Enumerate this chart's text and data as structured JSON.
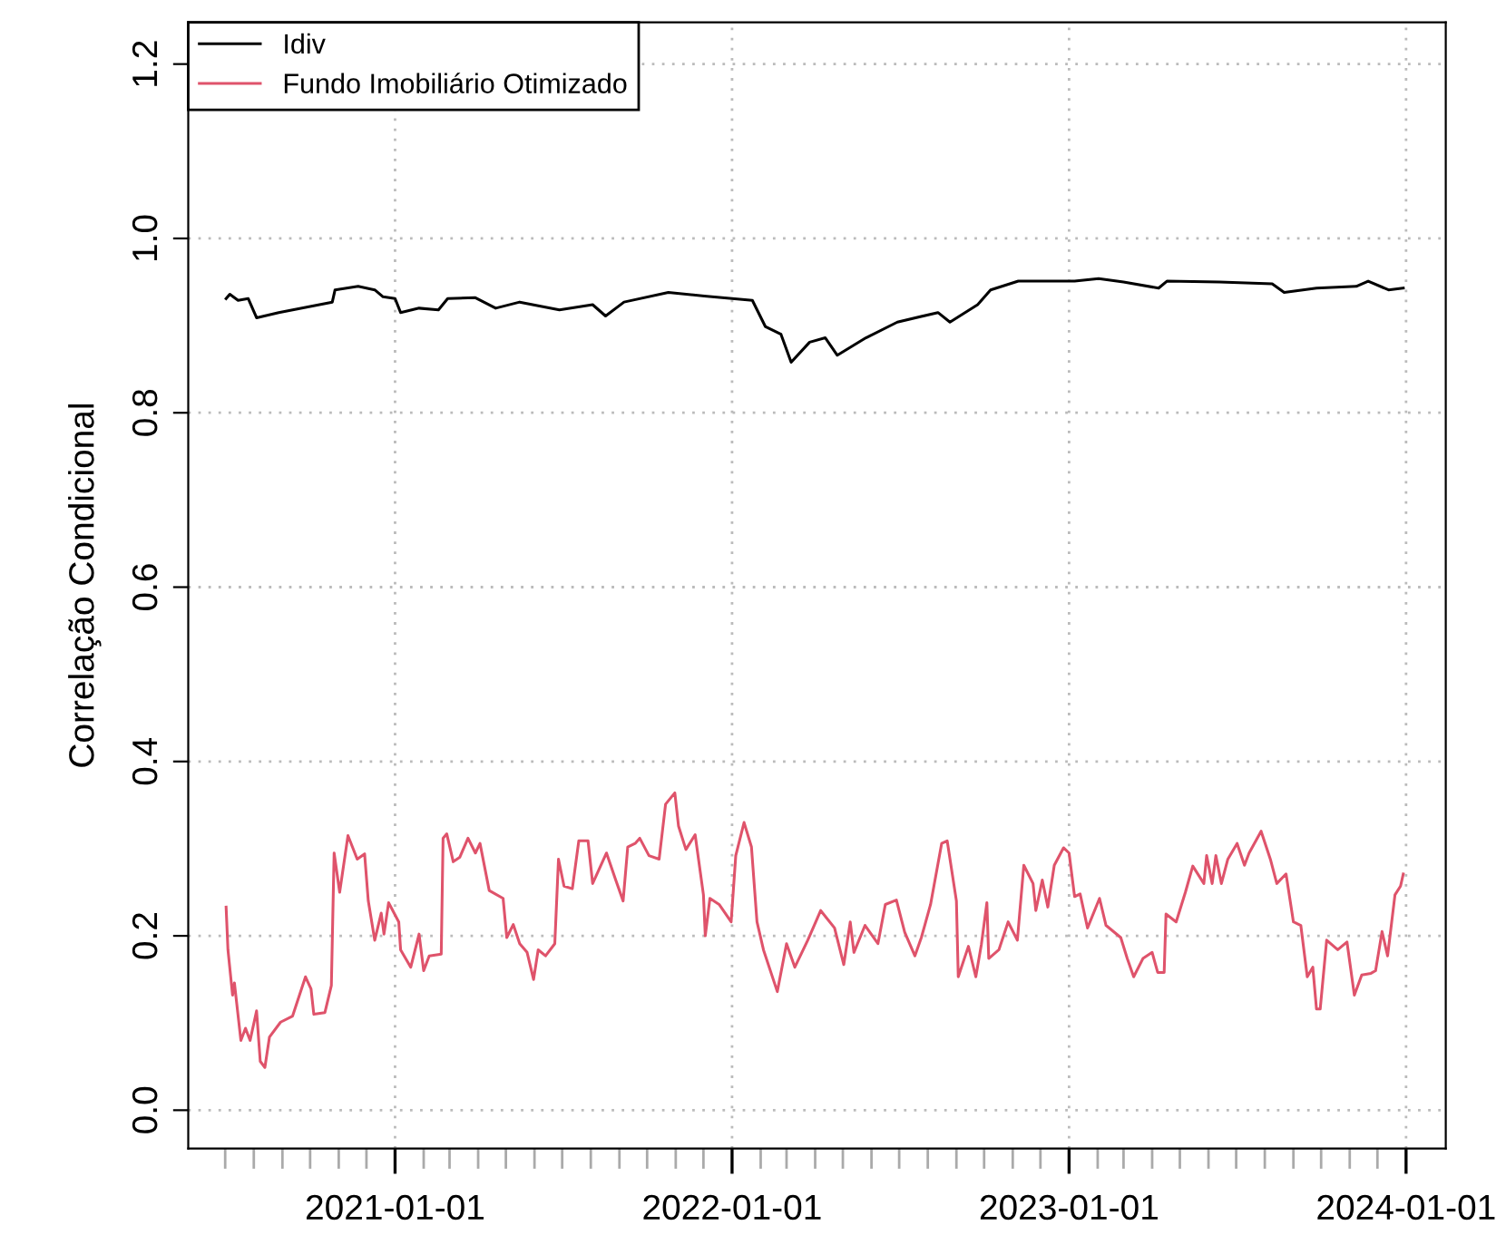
{
  "chart_data": {
    "type": "line",
    "ylabel": "Correlação Condicional",
    "xlim": [
      "2020-05-22",
      "2024-02-13"
    ],
    "ylim": [
      -0.044,
      1.248
    ],
    "yticks": [
      {
        "value": 0.0,
        "label": "0.0"
      },
      {
        "value": 0.2,
        "label": "0.2"
      },
      {
        "value": 0.4,
        "label": "0.4"
      },
      {
        "value": 0.6,
        "label": "0.6"
      },
      {
        "value": 0.8,
        "label": "0.8"
      },
      {
        "value": 1.0,
        "label": "1.0"
      },
      {
        "value": 1.2,
        "label": "1.2"
      }
    ],
    "xticks": [
      {
        "value": "2020-07-01",
        "label": null
      },
      {
        "value": "2020-08-01",
        "label": null
      },
      {
        "value": "2020-09-01",
        "label": null
      },
      {
        "value": "2020-10-01",
        "label": null
      },
      {
        "value": "2020-11-01",
        "label": null
      },
      {
        "value": "2020-12-01",
        "label": null
      },
      {
        "value": "2021-01-01",
        "label": "2021-01-01"
      },
      {
        "value": "2021-02-01",
        "label": null
      },
      {
        "value": "2021-03-01",
        "label": null
      },
      {
        "value": "2021-04-01",
        "label": null
      },
      {
        "value": "2021-05-01",
        "label": null
      },
      {
        "value": "2021-06-01",
        "label": null
      },
      {
        "value": "2021-07-01",
        "label": null
      },
      {
        "value": "2021-08-01",
        "label": null
      },
      {
        "value": "2021-09-01",
        "label": null
      },
      {
        "value": "2021-10-01",
        "label": null
      },
      {
        "value": "2021-11-01",
        "label": null
      },
      {
        "value": "2021-12-01",
        "label": null
      },
      {
        "value": "2022-01-01",
        "label": "2022-01-01"
      },
      {
        "value": "2022-02-01",
        "label": null
      },
      {
        "value": "2022-03-01",
        "label": null
      },
      {
        "value": "2022-04-01",
        "label": null
      },
      {
        "value": "2022-05-01",
        "label": null
      },
      {
        "value": "2022-06-01",
        "label": null
      },
      {
        "value": "2022-07-01",
        "label": null
      },
      {
        "value": "2022-08-01",
        "label": null
      },
      {
        "value": "2022-09-01",
        "label": null
      },
      {
        "value": "2022-10-01",
        "label": null
      },
      {
        "value": "2022-11-01",
        "label": null
      },
      {
        "value": "2022-12-01",
        "label": null
      },
      {
        "value": "2023-01-01",
        "label": "2023-01-01"
      },
      {
        "value": "2023-02-01",
        "label": null
      },
      {
        "value": "2023-03-01",
        "label": null
      },
      {
        "value": "2023-04-01",
        "label": null
      },
      {
        "value": "2023-05-01",
        "label": null
      },
      {
        "value": "2023-06-01",
        "label": null
      },
      {
        "value": "2023-07-01",
        "label": null
      },
      {
        "value": "2023-08-01",
        "label": null
      },
      {
        "value": "2023-09-01",
        "label": null
      },
      {
        "value": "2023-10-01",
        "label": null
      },
      {
        "value": "2023-11-01",
        "label": null
      },
      {
        "value": "2023-12-01",
        "label": null
      },
      {
        "value": "2024-01-01",
        "label": "2024-01-01"
      }
    ],
    "grid": true,
    "legend": "top left",
    "line_style": "solid",
    "series": [
      {
        "name": "Idiv",
        "color": "#000000",
        "x": [
          "2020-07-02",
          "2020-07-06",
          "2020-07-15",
          "2020-07-26",
          "2020-08-04",
          "2020-08-28",
          "2020-10-01",
          "2020-10-25",
          "2020-10-28",
          "2020-11-22",
          "2020-12-10",
          "2020-12-19",
          "2021-01-01",
          "2021-01-07",
          "2021-01-27",
          "2021-02-17",
          "2021-02-27",
          "2021-03-29",
          "2021-04-20",
          "2021-05-16",
          "2021-06-28",
          "2021-08-03",
          "2021-08-17",
          "2021-09-06",
          "2021-10-24",
          "2021-12-02",
          "2022-01-23",
          "2022-02-06",
          "2022-02-23",
          "2022-03-06",
          "2022-03-26",
          "2022-04-12",
          "2022-04-25",
          "2022-05-26",
          "2022-06-29",
          "2022-08-12",
          "2022-08-25",
          "2022-09-24",
          "2022-10-08",
          "2022-11-07",
          "2023-01-07",
          "2023-02-02",
          "2023-03-01",
          "2023-04-08",
          "2023-04-17",
          "2023-06-13",
          "2023-08-09",
          "2023-08-22",
          "2023-09-26",
          "2023-11-08",
          "2023-11-21",
          "2023-12-13",
          "2023-12-29"
        ],
        "values": [
          0.931,
          0.936,
          0.929,
          0.931,
          0.909,
          0.915,
          0.922,
          0.927,
          0.941,
          0.945,
          0.941,
          0.933,
          0.931,
          0.915,
          0.92,
          0.918,
          0.931,
          0.932,
          0.92,
          0.927,
          0.918,
          0.924,
          0.911,
          0.927,
          0.938,
          0.934,
          0.929,
          0.899,
          0.89,
          0.858,
          0.881,
          0.886,
          0.866,
          0.886,
          0.904,
          0.915,
          0.904,
          0.924,
          0.941,
          0.951,
          0.951,
          0.954,
          0.95,
          0.943,
          0.951,
          0.95,
          0.948,
          0.938,
          0.943,
          0.945,
          0.951,
          0.941,
          0.943
        ]
      },
      {
        "name": "Fundo Imobiliário Otimizado",
        "color": "#df536b",
        "x": [
          "2020-07-02",
          "2020-07-04",
          "2020-07-09",
          "2020-07-11",
          "2020-07-18",
          "2020-07-23",
          "2020-07-28",
          "2020-08-04",
          "2020-08-08",
          "2020-08-13",
          "2020-08-18",
          "2020-08-30",
          "2020-09-12",
          "2020-09-26",
          "2020-10-02",
          "2020-10-05",
          "2020-10-17",
          "2020-10-24",
          "2020-10-27",
          "2020-11-02",
          "2020-11-11",
          "2020-11-21",
          "2020-11-29",
          "2020-12-03",
          "2020-12-10",
          "2020-12-17",
          "2020-12-20",
          "2020-12-25",
          "2021-01-05",
          "2021-01-07",
          "2021-01-18",
          "2021-01-27",
          "2021-02-01",
          "2021-02-07",
          "2021-02-20",
          "2021-02-22",
          "2021-02-26",
          "2021-03-05",
          "2021-03-12",
          "2021-03-21",
          "2021-03-29",
          "2021-04-03",
          "2021-04-13",
          "2021-04-28",
          "2021-05-02",
          "2021-05-09",
          "2021-05-16",
          "2021-05-24",
          "2021-05-31",
          "2021-06-05",
          "2021-06-13",
          "2021-06-23",
          "2021-06-27",
          "2021-07-03",
          "2021-07-12",
          "2021-07-19",
          "2021-07-29",
          "2021-08-03",
          "2021-08-18",
          "2021-08-28",
          "2021-09-05",
          "2021-09-10",
          "2021-09-18",
          "2021-09-23",
          "2021-10-03",
          "2021-10-14",
          "2021-10-21",
          "2021-10-31",
          "2021-11-04",
          "2021-11-12",
          "2021-11-22",
          "2021-12-01",
          "2021-12-03",
          "2021-12-08",
          "2021-12-18",
          "2021-12-31",
          "2022-01-05",
          "2022-01-14",
          "2022-01-22",
          "2022-01-28",
          "2022-02-04",
          "2022-02-19",
          "2022-03-01",
          "2022-03-10",
          "2022-03-24",
          "2022-04-07",
          "2022-04-22",
          "2022-05-02",
          "2022-05-09",
          "2022-05-13",
          "2022-05-25",
          "2022-06-08",
          "2022-06-16",
          "2022-06-28",
          "2022-07-07",
          "2022-07-18",
          "2022-07-25",
          "2022-08-04",
          "2022-08-16",
          "2022-08-22",
          "2022-09-01",
          "2022-09-03",
          "2022-09-14",
          "2022-09-22",
          "2022-09-28",
          "2022-10-04",
          "2022-10-06",
          "2022-10-17",
          "2022-10-27",
          "2022-11-06",
          "2022-11-13",
          "2022-11-23",
          "2022-11-26",
          "2022-12-03",
          "2022-12-09",
          "2022-12-16",
          "2022-12-26",
          "2023-01-01",
          "2023-01-07",
          "2023-01-13",
          "2023-01-21",
          "2023-02-03",
          "2023-02-10",
          "2023-02-26",
          "2023-03-05",
          "2023-03-12",
          "2023-03-22",
          "2023-04-01",
          "2023-04-07",
          "2023-04-14",
          "2023-04-16",
          "2023-04-27",
          "2023-05-07",
          "2023-05-15",
          "2023-05-27",
          "2023-05-30",
          "2023-06-05",
          "2023-06-09",
          "2023-06-15",
          "2023-06-22",
          "2023-07-02",
          "2023-07-10",
          "2023-07-15",
          "2023-07-28",
          "2023-08-07",
          "2023-08-14",
          "2023-08-24",
          "2023-09-01",
          "2023-09-09",
          "2023-09-16",
          "2023-09-22",
          "2023-09-26",
          "2023-09-30",
          "2023-10-07",
          "2023-10-19",
          "2023-10-29",
          "2023-11-06",
          "2023-11-14",
          "2023-11-24",
          "2023-11-29",
          "2023-12-06",
          "2023-12-12",
          "2023-12-20",
          "2023-12-26",
          "2023-12-29"
        ],
        "values": [
          0.233,
          0.184,
          0.132,
          0.146,
          0.08,
          0.094,
          0.08,
          0.114,
          0.056,
          0.049,
          0.084,
          0.101,
          0.108,
          0.153,
          0.139,
          0.11,
          0.112,
          0.143,
          0.295,
          0.25,
          0.315,
          0.288,
          0.294,
          0.24,
          0.195,
          0.226,
          0.202,
          0.238,
          0.216,
          0.184,
          0.164,
          0.202,
          0.16,
          0.177,
          0.179,
          0.312,
          0.317,
          0.285,
          0.29,
          0.312,
          0.295,
          0.306,
          0.252,
          0.243,
          0.198,
          0.213,
          0.191,
          0.181,
          0.15,
          0.184,
          0.177,
          0.191,
          0.288,
          0.257,
          0.254,
          0.309,
          0.309,
          0.26,
          0.295,
          0.264,
          0.24,
          0.302,
          0.306,
          0.312,
          0.292,
          0.288,
          0.351,
          0.364,
          0.326,
          0.299,
          0.316,
          0.247,
          0.2,
          0.243,
          0.236,
          0.216,
          0.292,
          0.33,
          0.302,
          0.216,
          0.184,
          0.136,
          0.191,
          0.164,
          0.195,
          0.229,
          0.209,
          0.167,
          0.216,
          0.181,
          0.212,
          0.191,
          0.236,
          0.241,
          0.204,
          0.177,
          0.198,
          0.236,
          0.306,
          0.309,
          0.24,
          0.153,
          0.188,
          0.153,
          0.19,
          0.238,
          0.174,
          0.184,
          0.216,
          0.195,
          0.281,
          0.26,
          0.229,
          0.264,
          0.233,
          0.281,
          0.301,
          0.295,
          0.245,
          0.248,
          0.209,
          0.243,
          0.212,
          0.198,
          0.174,
          0.153,
          0.174,
          0.181,
          0.158,
          0.158,
          0.225,
          0.216,
          0.25,
          0.28,
          0.26,
          0.292,
          0.26,
          0.292,
          0.26,
          0.288,
          0.306,
          0.281,
          0.295,
          0.32,
          0.288,
          0.26,
          0.271,
          0.216,
          0.212,
          0.153,
          0.164,
          0.116,
          0.116,
          0.195,
          0.184,
          0.193,
          0.132,
          0.155,
          0.157,
          0.16,
          0.205,
          0.177,
          0.247,
          0.257,
          0.271
        ]
      }
    ]
  }
}
